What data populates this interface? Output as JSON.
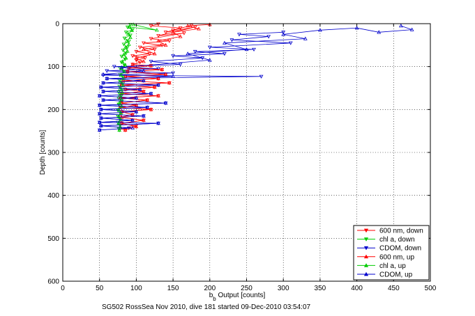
{
  "chart_data": {
    "type": "line",
    "title": "",
    "footer": "SG502 RossSea Nov 2010, dive 181 started 09-Dec-2010 03:54:07",
    "xlabel_main": "b",
    "xlabel_sub": "b",
    "xlabel_rest": " Output [counts]",
    "ylabel": "Depth [counts]",
    "xlim": [
      0,
      500
    ],
    "ylim": [
      0,
      600
    ],
    "y_reversed": true,
    "grid": true,
    "legend_position": "bottom-right",
    "xticks": [
      "0",
      "50",
      "100",
      "150",
      "200",
      "250",
      "300",
      "350",
      "400",
      "450",
      "500"
    ],
    "yticks": [
      "0",
      "100",
      "200",
      "300",
      "400",
      "500",
      "600"
    ],
    "series": [
      {
        "name": "600 nm, down",
        "color": "#ff0000",
        "marker": "triangle-down",
        "points": [
          [
            130,
            1
          ],
          [
            120,
            5
          ],
          [
            160,
            10
          ],
          [
            150,
            15
          ],
          [
            175,
            4
          ],
          [
            140,
            20
          ],
          [
            180,
            8
          ],
          [
            130,
            28
          ],
          [
            165,
            22
          ],
          [
            120,
            35
          ],
          [
            145,
            40
          ],
          [
            110,
            45
          ],
          [
            135,
            50
          ],
          [
            105,
            55
          ],
          [
            125,
            60
          ],
          [
            100,
            65
          ],
          [
            118,
            70
          ],
          [
            95,
            75
          ],
          [
            112,
            80
          ],
          [
            100,
            85
          ],
          [
            105,
            90
          ],
          [
            95,
            95
          ],
          [
            120,
            98
          ],
          [
            90,
            103
          ],
          [
            135,
            107
          ],
          [
            88,
            112
          ],
          [
            140,
            118
          ],
          [
            85,
            123
          ],
          [
            130,
            128
          ],
          [
            82,
            133
          ],
          [
            145,
            138
          ],
          [
            80,
            143
          ],
          [
            125,
            148
          ],
          [
            85,
            153
          ],
          [
            110,
            158
          ],
          [
            80,
            163
          ],
          [
            130,
            168
          ],
          [
            78,
            173
          ],
          [
            115,
            178
          ],
          [
            80,
            185
          ],
          [
            100,
            190
          ],
          [
            78,
            195
          ],
          [
            120,
            200
          ],
          [
            80,
            205
          ],
          [
            95,
            212
          ],
          [
            78,
            218
          ],
          [
            110,
            225
          ],
          [
            80,
            232
          ],
          [
            100,
            238
          ],
          [
            78,
            245
          ],
          [
            85,
            248
          ]
        ]
      },
      {
        "name": "chl a, down",
        "color": "#00cc00",
        "marker": "triangle-down",
        "points": [
          [
            92,
            2
          ],
          [
            88,
            8
          ],
          [
            95,
            14
          ],
          [
            86,
            20
          ],
          [
            92,
            27
          ],
          [
            84,
            34
          ],
          [
            90,
            41
          ],
          [
            83,
            48
          ],
          [
            88,
            55
          ],
          [
            82,
            62
          ],
          [
            86,
            69
          ],
          [
            80,
            76
          ],
          [
            85,
            83
          ],
          [
            80,
            90
          ],
          [
            84,
            97
          ],
          [
            78,
            104
          ],
          [
            83,
            111
          ],
          [
            78,
            118
          ],
          [
            82,
            125
          ],
          [
            77,
            132
          ],
          [
            82,
            139
          ],
          [
            77,
            146
          ],
          [
            81,
            153
          ],
          [
            76,
            160
          ],
          [
            80,
            167
          ],
          [
            76,
            174
          ],
          [
            80,
            181
          ],
          [
            76,
            188
          ],
          [
            79,
            195
          ],
          [
            75,
            202
          ],
          [
            79,
            209
          ],
          [
            75,
            216
          ],
          [
            78,
            223
          ],
          [
            75,
            230
          ],
          [
            78,
            237
          ],
          [
            76,
            244
          ],
          [
            77,
            248
          ]
        ]
      },
      {
        "name": "CDOM, down",
        "color": "#0000cc",
        "marker": "triangle-down",
        "points": [
          [
            300,
            20
          ],
          [
            240,
            25
          ],
          [
            280,
            30
          ],
          [
            230,
            38
          ],
          [
            310,
            45
          ],
          [
            200,
            55
          ],
          [
            260,
            60
          ],
          [
            180,
            65
          ],
          [
            220,
            70
          ],
          [
            150,
            75
          ],
          [
            190,
            80
          ],
          [
            120,
            88
          ],
          [
            160,
            95
          ],
          [
            70,
            100
          ],
          [
            130,
            105
          ],
          [
            60,
            110
          ],
          [
            150,
            115
          ],
          [
            55,
            120
          ],
          [
            270,
            123
          ],
          [
            60,
            128
          ],
          [
            110,
            133
          ],
          [
            55,
            138
          ],
          [
            130,
            143
          ],
          [
            52,
            148
          ],
          [
            105,
            153
          ],
          [
            55,
            158
          ],
          [
            120,
            163
          ],
          [
            50,
            168
          ],
          [
            100,
            173
          ],
          [
            55,
            178
          ],
          [
            140,
            185
          ],
          [
            50,
            190
          ],
          [
            115,
            195
          ],
          [
            52,
            200
          ],
          [
            100,
            205
          ],
          [
            50,
            210
          ],
          [
            110,
            215
          ],
          [
            52,
            220
          ],
          [
            95,
            225
          ],
          [
            50,
            230
          ],
          [
            130,
            232
          ],
          [
            52,
            238
          ],
          [
            90,
            243
          ],
          [
            50,
            248
          ]
        ]
      },
      {
        "name": "600 nm, up",
        "color": "#ff0000",
        "marker": "triangle-up",
        "points": [
          [
            85,
            248
          ],
          [
            100,
            240
          ],
          [
            80,
            232
          ],
          [
            110,
            225
          ],
          [
            80,
            218
          ],
          [
            95,
            212
          ],
          [
            80,
            205
          ],
          [
            120,
            200
          ],
          [
            78,
            195
          ],
          [
            100,
            190
          ],
          [
            80,
            185
          ],
          [
            115,
            178
          ],
          [
            78,
            173
          ],
          [
            130,
            168
          ],
          [
            80,
            163
          ],
          [
            110,
            158
          ],
          [
            85,
            153
          ],
          [
            125,
            148
          ],
          [
            80,
            143
          ],
          [
            145,
            138
          ],
          [
            82,
            133
          ],
          [
            130,
            128
          ],
          [
            85,
            123
          ],
          [
            140,
            118
          ],
          [
            88,
            112
          ],
          [
            135,
            107
          ],
          [
            90,
            103
          ],
          [
            120,
            98
          ],
          [
            95,
            95
          ],
          [
            110,
            88
          ],
          [
            100,
            80
          ],
          [
            125,
            70
          ],
          [
            110,
            60
          ],
          [
            140,
            50
          ],
          [
            130,
            40
          ],
          [
            160,
            30
          ],
          [
            150,
            20
          ],
          [
            185,
            12
          ],
          [
            170,
            5
          ],
          [
            200,
            2
          ]
        ]
      },
      {
        "name": "chl a, up",
        "color": "#00cc00",
        "marker": "triangle-up",
        "points": [
          [
            77,
            248
          ],
          [
            78,
            240
          ],
          [
            76,
            232
          ],
          [
            79,
            224
          ],
          [
            76,
            216
          ],
          [
            79,
            208
          ],
          [
            76,
            200
          ],
          [
            80,
            192
          ],
          [
            77,
            184
          ],
          [
            80,
            176
          ],
          [
            77,
            168
          ],
          [
            81,
            160
          ],
          [
            78,
            152
          ],
          [
            82,
            144
          ],
          [
            78,
            136
          ],
          [
            83,
            128
          ],
          [
            79,
            120
          ],
          [
            84,
            112
          ],
          [
            80,
            104
          ],
          [
            85,
            96
          ],
          [
            81,
            88
          ],
          [
            86,
            80
          ],
          [
            83,
            72
          ],
          [
            88,
            64
          ],
          [
            85,
            56
          ],
          [
            90,
            48
          ],
          [
            87,
            40
          ],
          [
            92,
            32
          ],
          [
            89,
            24
          ],
          [
            94,
            16
          ],
          [
            91,
            8
          ],
          [
            128,
            15
          ],
          [
            96,
            2
          ]
        ]
      },
      {
        "name": "CDOM, up",
        "color": "#0000cc",
        "marker": "triangle-up",
        "points": [
          [
            50,
            248
          ],
          [
            95,
            243
          ],
          [
            52,
            238
          ],
          [
            130,
            232
          ],
          [
            50,
            230
          ],
          [
            95,
            225
          ],
          [
            52,
            220
          ],
          [
            110,
            215
          ],
          [
            50,
            210
          ],
          [
            100,
            205
          ],
          [
            52,
            200
          ],
          [
            115,
            195
          ],
          [
            50,
            190
          ],
          [
            140,
            185
          ],
          [
            55,
            178
          ],
          [
            100,
            173
          ],
          [
            50,
            168
          ],
          [
            120,
            163
          ],
          [
            55,
            158
          ],
          [
            105,
            153
          ],
          [
            52,
            148
          ],
          [
            130,
            143
          ],
          [
            55,
            138
          ],
          [
            110,
            133
          ],
          [
            60,
            128
          ],
          [
            150,
            123
          ],
          [
            55,
            118
          ],
          [
            110,
            110
          ],
          [
            80,
            102
          ],
          [
            200,
            85
          ],
          [
            170,
            70
          ],
          [
            250,
            60
          ],
          [
            220,
            45
          ],
          [
            330,
            35
          ],
          [
            300,
            25
          ],
          [
            350,
            15
          ],
          [
            400,
            10
          ],
          [
            430,
            20
          ],
          [
            475,
            14
          ],
          [
            460,
            5
          ]
        ]
      }
    ]
  }
}
